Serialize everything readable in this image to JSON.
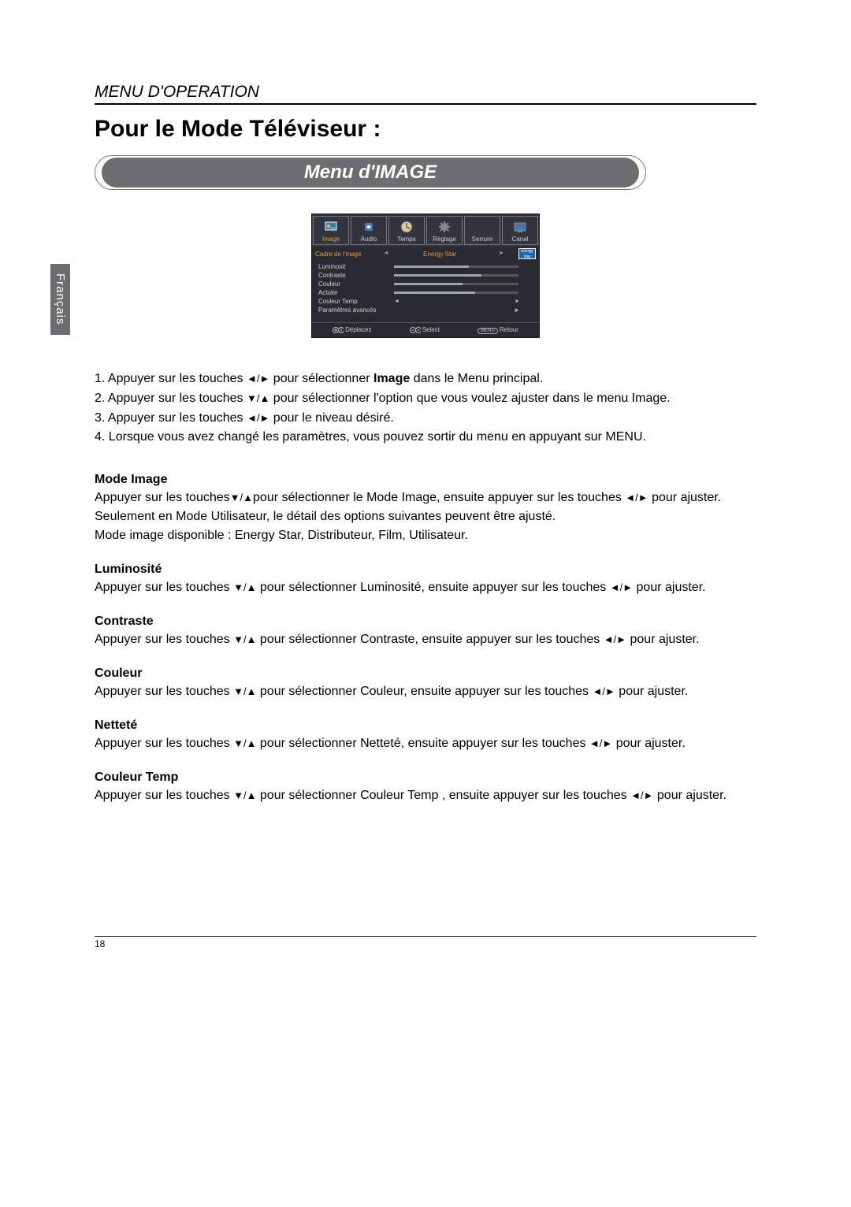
{
  "header": {
    "section": "MENU D'OPERATION",
    "title": "Pour le Mode Téléviseur :",
    "banner": "Menu d'IMAGE"
  },
  "language_tab": "Français",
  "osd": {
    "tabs": [
      {
        "label": "Image",
        "active": true
      },
      {
        "label": "Audio",
        "active": false
      },
      {
        "label": "Temps",
        "active": false
      },
      {
        "label": "Règlage",
        "active": false
      },
      {
        "label": "Serrure",
        "active": false
      },
      {
        "label": "Canal",
        "active": false
      }
    ],
    "title_left": "Cadre de l'mage",
    "title_mid": "Energy Star",
    "items": [
      {
        "label": "Luminosit",
        "type": "slider",
        "value": 60
      },
      {
        "label": "Contraste",
        "type": "slider",
        "value": 70
      },
      {
        "label": "Couleur",
        "type": "slider",
        "value": 55
      },
      {
        "label": "Actuite",
        "type": "slider",
        "value": 65
      },
      {
        "label": "Couleur Temp",
        "type": "arrows"
      },
      {
        "label": "Paramètres avancés",
        "type": "arrow-right"
      }
    ],
    "footer": {
      "move": "Déplacez",
      "select": "Select",
      "menu": "MENU",
      "return": "Retour"
    }
  },
  "steps": {
    "s1a": "Appuyer sur les touches ",
    "s1b": " pour sélectionner ",
    "s1_bold": "Image",
    "s1c": " dans le Menu principal.",
    "s2a": "Appuyer sur les touches ",
    "s2b": " pour sélectionner l'option que vous voulez ajuster dans le menu Image.",
    "s3a": "Appuyer sur les touches ",
    "s3b": " pour le niveau désiré.",
    "s4": "Lorsque vous avez changé les paramètres, vous pouvez sortir du menu en appuyant sur MENU."
  },
  "arrows": {
    "lr": "◄/►",
    "ud": "▼/▲"
  },
  "sections": [
    {
      "title": "Mode Image",
      "body_parts": [
        "Appuyer sur les touches",
        "▼/▲",
        "pour sélectionner le Mode Image, ensuite appuyer sur les touches ",
        "◄/►",
        " pour ajuster. Seulement en Mode Utilisateur, le détail des options suivantes peuvent être ajusté.\nMode image disponible : Energy Star, Distributeur, Film, Utilisateur."
      ]
    },
    {
      "title": "Luminosité",
      "body_parts": [
        "Appuyer sur les touches ",
        "▼/▲",
        " pour sélectionner Luminosité, ensuite appuyer sur les touches ",
        "◄/►",
        " pour ajuster."
      ]
    },
    {
      "title": "Contraste",
      "body_parts": [
        "Appuyer sur les touches ",
        "▼/▲",
        " pour sélectionner Contraste, ensuite appuyer sur les touches ",
        "◄/►",
        " pour ajuster."
      ]
    },
    {
      "title": "Couleur",
      "body_parts": [
        "Appuyer sur les touches ",
        "▼/▲",
        " pour sélectionner Couleur, ensuite appuyer sur les touches ",
        "◄/►",
        " pour ajuster."
      ]
    },
    {
      "title": "Netteté",
      "body_parts": [
        "Appuyer sur les touches ",
        "▼/▲",
        " pour sélectionner Netteté, ensuite appuyer sur les touches ",
        "◄/►",
        " pour ajuster."
      ]
    },
    {
      "title": "Couleur Temp",
      "body_parts": [
        "Appuyer sur les touches ",
        "▼/▲",
        " pour sélectionner Couleur Temp , ensuite appuyer sur les touches ",
        "◄/►",
        " pour ajuster."
      ]
    }
  ],
  "page_number": "18",
  "colors": {
    "accent": "#e0a030",
    "osd_bg": "#2a2a33",
    "banner_bg": "#6b6e6e"
  }
}
